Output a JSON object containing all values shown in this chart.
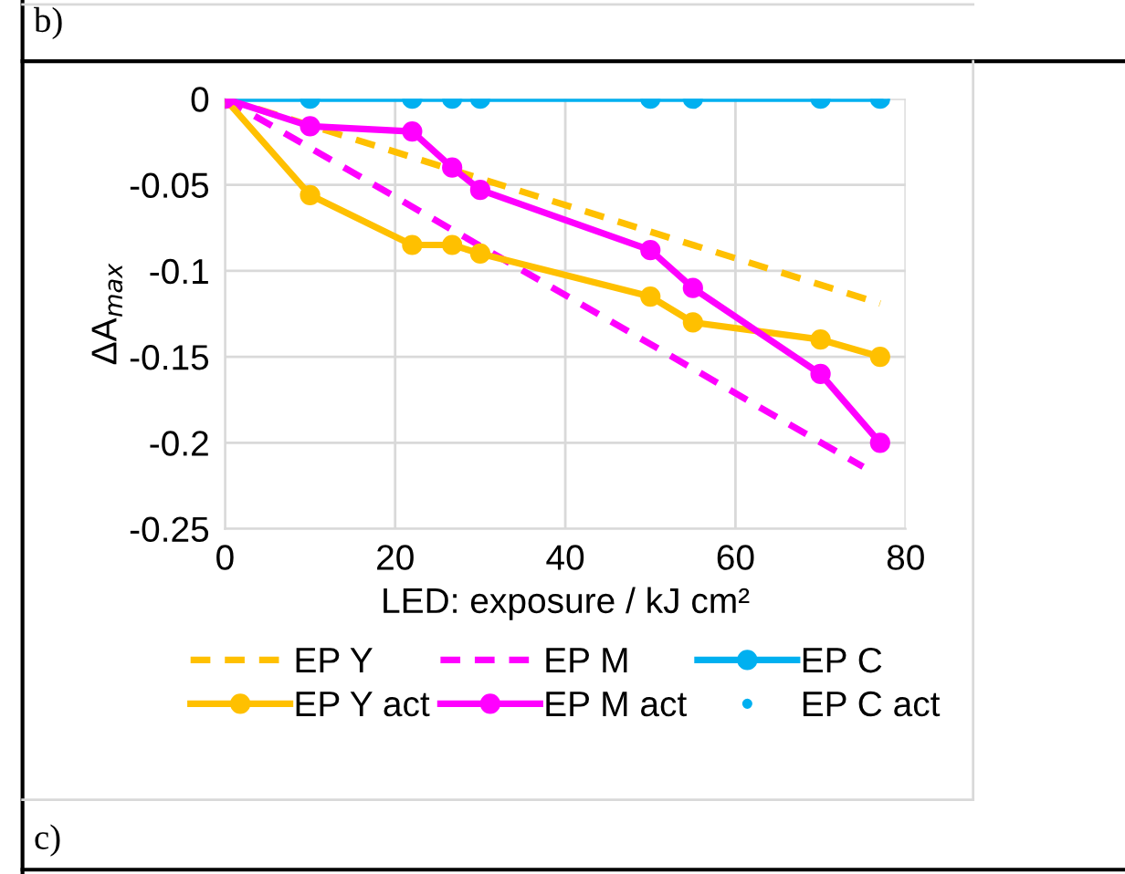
{
  "chart_data": {
    "type": "line",
    "xlabel": "LED: exposure / kJ cm²",
    "ylabel": "ΔA$_{max}$",
    "annotations": [
      "b)",
      "c)"
    ],
    "xlim": [
      0,
      80
    ],
    "xticks": [
      0,
      20,
      40,
      60,
      80
    ],
    "ylim": [
      -0.25,
      0
    ],
    "yticks": [
      {
        "value": -0.25,
        "label": "-0.25"
      },
      {
        "value": -0.2,
        "label": "-0.2"
      },
      {
        "value": -0.15,
        "label": "-0.15"
      },
      {
        "value": -0.1,
        "label": "-0.1"
      },
      {
        "value": -0.05,
        "label": "-0.05"
      },
      {
        "value": 0,
        "label": "0"
      }
    ],
    "grid": true,
    "legend": "bottom",
    "series": [
      {
        "name": "EP Y",
        "color": "#ffc000",
        "line_style": "dashed",
        "x": [
          0,
          77
        ],
        "values": [
          0,
          -0.119
        ]
      },
      {
        "name": "EP M",
        "color": "#ff00ff",
        "line_style": "dashed",
        "x": [
          0,
          75
        ],
        "values": [
          0,
          -0.214
        ]
      },
      {
        "name": "EP C",
        "color": "#00b0f0",
        "line_style": "solid",
        "marker": "circle",
        "x": [
          0,
          10,
          22,
          26.7,
          30,
          50,
          55,
          70,
          77
        ],
        "values": [
          0,
          0,
          0,
          0,
          0,
          0,
          0,
          0,
          0
        ]
      },
      {
        "name": "EP Y act",
        "color": "#ffc000",
        "line_style": "solid",
        "marker": "circle",
        "x": [
          0,
          10,
          22,
          26.7,
          30,
          50,
          55,
          70,
          77
        ],
        "values": [
          0,
          -0.056,
          -0.085,
          -0.085,
          -0.09,
          -0.115,
          -0.13,
          -0.14,
          -0.15
        ]
      },
      {
        "name": "EP M act",
        "color": "#ff00ff",
        "line_style": "solid",
        "marker": "circle",
        "x": [
          0,
          10,
          22,
          26.7,
          30,
          50,
          55,
          70,
          77
        ],
        "values": [
          0,
          -0.016,
          -0.019,
          -0.04,
          -0.053,
          -0.088,
          -0.11,
          -0.16,
          -0.2
        ]
      },
      {
        "name": "EP C act",
        "type": "scatter",
        "color": "#00b0f0",
        "marker": "circle"
      }
    ]
  }
}
